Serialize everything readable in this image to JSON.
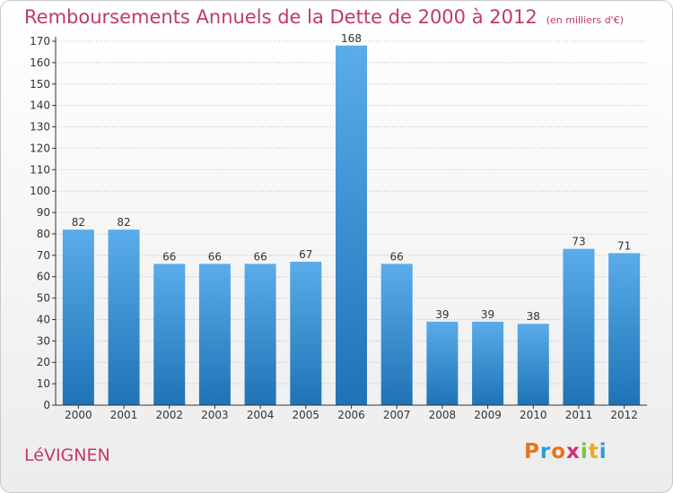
{
  "header": {
    "title": "Remboursements Annuels de la Dette de 2000 à 2012",
    "subtitle": "(en milliers d'€)"
  },
  "footer": {
    "commune": "LéVIGNEN",
    "logo": {
      "letters": [
        "P",
        "r",
        "o",
        "x",
        "i",
        "t",
        "i"
      ],
      "colors": [
        "#e8731e",
        "#2f9ad8",
        "#e8731e",
        "#d92b7a",
        "#7cc142",
        "#f0a81c",
        "#2f9ad8"
      ]
    }
  },
  "colors": {
    "bar_light": "#5aacea",
    "bar_dark": "#1f73b5",
    "axis": "#333333",
    "grid": "#bfbfbf",
    "title": "#c0396a"
  },
  "chart_data": {
    "type": "bar",
    "title": "Remboursements Annuels de la Dette de 2000 à 2012",
    "subtitle": "(en milliers d'€)",
    "xlabel": "",
    "ylabel": "",
    "categories": [
      "2000",
      "2001",
      "2002",
      "2003",
      "2004",
      "2005",
      "2006",
      "2007",
      "2008",
      "2009",
      "2010",
      "2011",
      "2012"
    ],
    "values": [
      82,
      82,
      66,
      66,
      66,
      67,
      168,
      66,
      39,
      39,
      38,
      73,
      71
    ],
    "data_labels": [
      "82",
      "82",
      "66",
      "66",
      "66",
      "67",
      "168",
      "66",
      "39",
      "39",
      "38",
      "73",
      "71"
    ],
    "ylim": [
      0,
      170
    ],
    "yticks": [
      0,
      10,
      20,
      30,
      40,
      50,
      60,
      70,
      80,
      90,
      100,
      110,
      120,
      130,
      140,
      150,
      160,
      170
    ],
    "grid": true,
    "legend": "none"
  }
}
